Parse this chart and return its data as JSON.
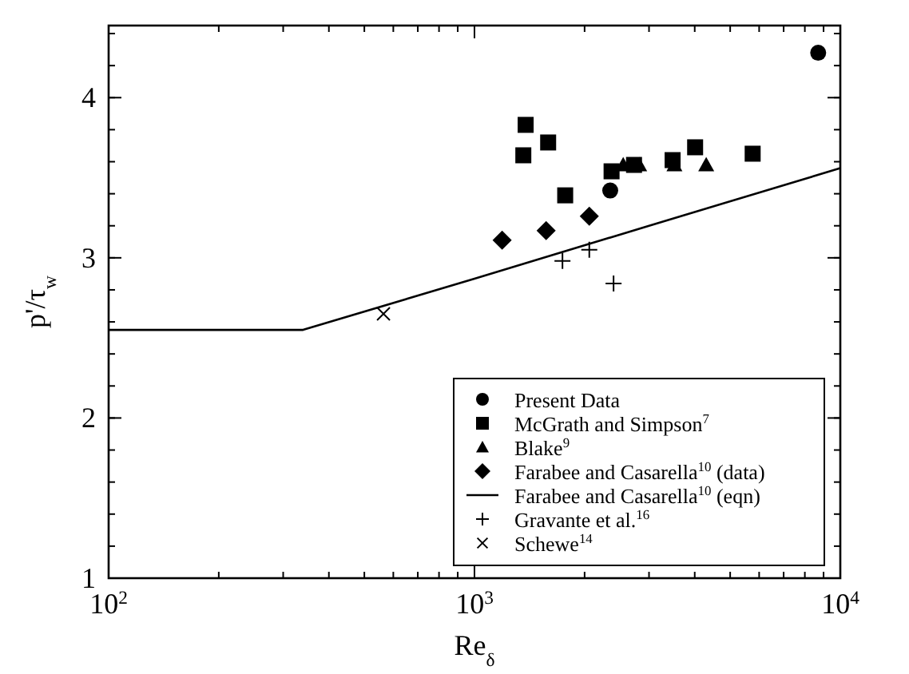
{
  "chart_data": {
    "type": "scatter",
    "xlabel": "Re$_{δ}$",
    "ylabel": "p'/τ$_{w}$",
    "log": "x",
    "xlim": [
      100,
      10000
    ],
    "xticks": [
      {
        "value": 100,
        "label": "10$^{2}$"
      },
      {
        "value": 1000,
        "label": "10$^{3}$"
      },
      {
        "value": 10000,
        "label": "10$^{4}$"
      }
    ],
    "ylim": [
      1,
      4.45
    ],
    "yticks": [
      1,
      2,
      3,
      4
    ],
    "grid": false,
    "legend": "bottom right",
    "series": [
      {
        "name": "Present Data",
        "marker": "circle",
        "color": "#000000",
        "x": [
          8700,
          2350
        ],
        "values": [
          4.28,
          3.42
        ]
      },
      {
        "name": "McGrath and Simpson$^{7}$",
        "marker": "square",
        "color": "#000000",
        "x": [
          1380,
          1360,
          1590,
          1770,
          2370,
          2730,
          3480,
          4010,
          5760
        ],
        "values": [
          3.83,
          3.64,
          3.72,
          3.39,
          3.54,
          3.58,
          3.61,
          3.69,
          3.65
        ]
      },
      {
        "name": "Blake$^{9}$",
        "marker": "triangle",
        "color": "#000000",
        "x": [
          2550,
          2820,
          3520,
          4300
        ],
        "values": [
          3.58,
          3.58,
          3.58,
          3.58
        ]
      },
      {
        "name": "Farabee and Casarella$^{10}$ (data)",
        "marker": "diamond",
        "color": "#000000",
        "x": [
          1190,
          1570,
          2060
        ],
        "values": [
          3.11,
          3.17,
          3.26
        ]
      },
      {
        "name": "Farabee and Casarella$^{10}$ (eqn)",
        "type": "line",
        "line_style": "solid",
        "color": "#000000",
        "x": [
          100,
          340,
          1000,
          3000,
          10000
        ],
        "values": [
          2.55,
          2.55,
          2.87,
          3.2,
          3.56
        ]
      },
      {
        "name": "Gravante et al.$^{16}$",
        "marker": "plus",
        "color": "#000000",
        "x": [
          1740,
          2060,
          2400
        ],
        "values": [
          2.98,
          3.05,
          2.84
        ]
      },
      {
        "name": "Schewe$^{14}$",
        "marker": "cross",
        "color": "#000000",
        "x": [
          564
        ],
        "values": [
          2.65
        ]
      }
    ]
  }
}
